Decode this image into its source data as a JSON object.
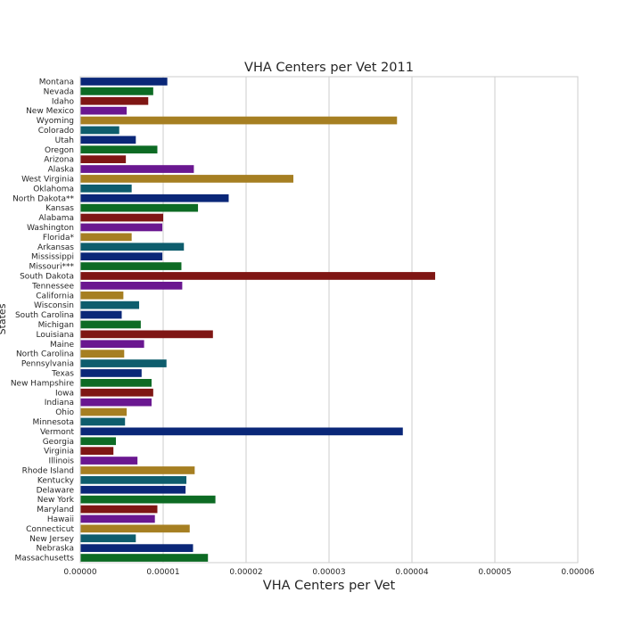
{
  "chart_data": {
    "type": "bar",
    "orientation": "horizontal",
    "title": "VHA Centers per Vet 2011",
    "xlabel": "VHA Centers per Vet",
    "ylabel": "States",
    "xlim": [
      0,
      6e-05
    ],
    "xticks": [
      "0.00000",
      "0.00001",
      "0.00002",
      "0.00003",
      "0.00004",
      "0.00005",
      "0.00006"
    ],
    "grid": true,
    "palette": [
      "#0a2778",
      "#0d6b24",
      "#7f1614",
      "#6a1790",
      "#a67f22",
      "#0e5d6d"
    ],
    "categories": [
      "Montana",
      "Nevada",
      "Idaho",
      "New Mexico",
      "Wyoming",
      "Colorado",
      "Utah",
      "Oregon",
      "Arizona",
      "Alaska",
      "West Virginia",
      "Oklahoma",
      "North Dakota**",
      "Kansas",
      "Alabama",
      "Washington",
      "Florida*",
      "Arkansas",
      "Mississippi",
      "Missouri***",
      "South Dakota",
      "Tennessee",
      "California",
      "Wisconsin",
      "South Carolina",
      "Michigan",
      "Louisiana",
      "Maine",
      "North Carolina",
      "Pennsylvania",
      "Texas",
      "New Hampshire",
      "Iowa",
      "Indiana",
      "Ohio",
      "Minnesota",
      "Vermont",
      "Georgia",
      "Virginia",
      "Illinois",
      "Rhode Island",
      "Kentucky",
      "Delaware",
      "New York",
      "Maryland",
      "Hawaii",
      "Connecticut",
      "New Jersey",
      "Nebraska",
      "Massachusetts"
    ],
    "values": [
      1.05e-05,
      8.8e-06,
      8.2e-06,
      5.6e-06,
      3.82e-05,
      4.7e-06,
      6.7e-06,
      9.3e-06,
      5.5e-06,
      1.37e-05,
      2.57e-05,
      6.2e-06,
      1.79e-05,
      1.42e-05,
      1e-05,
      9.9e-06,
      6.2e-06,
      1.25e-05,
      9.9e-06,
      1.22e-05,
      4.28e-05,
      1.23e-05,
      5.2e-06,
      7.1e-06,
      5e-06,
      7.3e-06,
      1.6e-05,
      7.7e-06,
      5.3e-06,
      1.04e-05,
      7.4e-06,
      8.6e-06,
      8.8e-06,
      8.6e-06,
      5.6e-06,
      5.4e-06,
      3.89e-05,
      4.3e-06,
      4e-06,
      6.9e-06,
      1.38e-05,
      1.28e-05,
      1.27e-05,
      1.63e-05,
      9.3e-06,
      9e-06,
      1.32e-05,
      6.7e-06,
      1.36e-05,
      1.54e-05
    ]
  }
}
